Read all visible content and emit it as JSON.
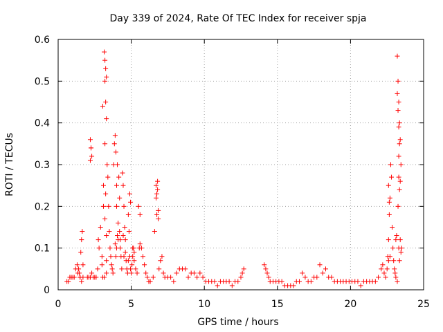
{
  "chart_data": {
    "type": "scatter",
    "title": "Day 339 of 2024, Rate Of TEC Index for receiver spja",
    "xlabel": "GPS time / hours",
    "ylabel": "ROTI / TECUs",
    "xlim": [
      0,
      25
    ],
    "ylim": [
      0,
      0.6
    ],
    "xticks": [
      "0",
      "5",
      "10",
      "15",
      "20",
      "25"
    ],
    "yticks": [
      "0",
      "0.1",
      "0.2",
      "0.3",
      "0.4",
      "0.5",
      "0.6"
    ],
    "grid": true,
    "marker": "+",
    "color": "#ff0000",
    "series": [
      {
        "x": [
          0.6,
          0.7,
          0.8,
          0.9,
          1.0,
          1.1,
          1.2,
          1.3,
          1.35,
          1.4,
          1.45,
          1.5,
          1.55,
          1.6,
          1.65,
          1.7,
          1.5,
          1.6,
          1.7,
          2.0,
          2.1,
          2.2,
          2.3,
          2.4,
          2.5,
          2.6,
          2.2,
          2.25,
          2.3,
          2.7,
          2.8,
          2.9,
          3.0,
          3.05,
          3.1,
          3.1,
          3.15,
          3.2,
          3.25,
          3.3,
          3.3,
          3.35,
          3.4,
          3.45,
          3.5,
          3.55,
          3.6,
          3.65,
          3.7,
          3.75,
          3.8,
          3.85,
          3.9,
          3.95,
          4.0,
          4.0,
          4.05,
          4.1,
          4.1,
          4.15,
          4.2,
          4.25,
          4.3,
          4.35,
          4.4,
          4.45,
          4.5,
          4.55,
          4.6,
          4.65,
          4.7,
          4.75,
          4.8,
          4.85,
          4.9,
          4.95,
          5.0,
          5.05,
          5.1,
          5.15,
          5.2,
          5.3,
          5.4,
          5.5,
          5.6,
          5.7,
          5.8,
          5.9,
          6.0,
          6.1,
          6.2,
          6.3,
          6.5,
          6.6,
          6.7,
          6.75,
          6.8,
          6.85,
          6.9,
          7.0,
          7.1,
          7.2,
          7.3,
          7.5,
          7.7,
          7.9,
          8.1,
          8.3,
          8.5,
          8.7,
          8.9,
          9.1,
          9.3,
          9.5,
          9.7,
          9.9,
          10.1,
          10.3,
          10.5,
          10.7,
          10.9,
          11.1,
          11.3,
          11.5,
          11.7,
          11.9,
          12.1,
          12.3,
          12.5,
          12.6,
          12.7,
          14.1,
          14.2,
          14.3,
          14.4,
          14.5,
          14.7,
          14.9,
          15.1,
          15.3,
          15.5,
          15.7,
          15.9,
          16.1,
          16.3,
          16.5,
          16.7,
          16.9,
          17.1,
          17.3,
          17.5,
          17.7,
          17.9,
          18.1,
          18.3,
          18.5,
          18.7,
          18.9,
          19.1,
          19.3,
          19.5,
          19.7,
          19.9,
          20.1,
          20.3,
          20.5,
          20.7,
          20.9,
          21.1,
          21.3,
          21.5,
          21.7,
          21.9,
          22.1,
          22.2,
          22.3,
          22.4,
          22.5,
          22.55,
          22.6,
          22.65,
          22.7,
          22.75,
          22.8,
          22.85,
          22.9,
          22.95,
          23.0,
          23.05,
          23.1,
          23.15,
          23.2,
          23.25,
          23.3,
          23.35,
          23.4,
          23.45,
          23.5,
          3.05,
          3.2,
          3.25,
          3.3,
          2.75,
          3.0,
          4.0,
          3.95,
          4.05,
          2.2,
          2.25,
          23.2,
          23.25,
          23.3,
          23.35,
          23.4,
          23.3,
          23.25,
          22.6,
          22.65,
          23.3,
          23.35,
          4.9,
          4.95,
          6.7,
          6.8,
          6.75,
          6.85,
          5.6,
          5.55,
          3.3,
          4.2,
          4.5,
          4.6,
          4.8,
          3.9,
          4.25,
          4.45,
          5.1,
          5.2,
          3.2,
          3.25,
          3.3,
          3.15,
          3.2,
          23.2,
          23.4,
          22.6,
          22.7,
          23.1,
          23.3,
          23.35,
          23.45
        ],
        "y": [
          0.02,
          0.02,
          0.03,
          0.03,
          0.03,
          0.03,
          0.05,
          0.06,
          0.04,
          0.05,
          0.04,
          0.03,
          0.09,
          0.12,
          0.14,
          0.06,
          0.03,
          0.02,
          0.03,
          0.03,
          0.03,
          0.03,
          0.04,
          0.03,
          0.03,
          0.03,
          0.36,
          0.34,
          0.32,
          0.05,
          0.1,
          0.15,
          0.08,
          0.44,
          0.2,
          0.25,
          0.57,
          0.55,
          0.53,
          0.51,
          0.41,
          0.3,
          0.27,
          0.2,
          0.14,
          0.1,
          0.08,
          0.06,
          0.05,
          0.04,
          0.3,
          0.35,
          0.37,
          0.33,
          0.25,
          0.2,
          0.3,
          0.16,
          0.12,
          0.27,
          0.22,
          0.1,
          0.08,
          0.05,
          0.28,
          0.25,
          0.2,
          0.15,
          0.12,
          0.07,
          0.05,
          0.04,
          0.18,
          0.14,
          0.08,
          0.05,
          0.04,
          0.06,
          0.08,
          0.1,
          0.07,
          0.05,
          0.04,
          0.2,
          0.18,
          0.1,
          0.08,
          0.06,
          0.04,
          0.03,
          0.02,
          0.02,
          0.03,
          0.14,
          0.25,
          0.23,
          0.26,
          0.19,
          0.05,
          0.07,
          0.08,
          0.04,
          0.03,
          0.03,
          0.03,
          0.02,
          0.04,
          0.05,
          0.05,
          0.05,
          0.03,
          0.04,
          0.04,
          0.03,
          0.04,
          0.03,
          0.02,
          0.02,
          0.02,
          0.02,
          0.01,
          0.02,
          0.02,
          0.02,
          0.02,
          0.01,
          0.02,
          0.02,
          0.03,
          0.04,
          0.05,
          0.06,
          0.05,
          0.04,
          0.03,
          0.02,
          0.02,
          0.02,
          0.02,
          0.02,
          0.01,
          0.01,
          0.01,
          0.01,
          0.02,
          0.02,
          0.04,
          0.03,
          0.02,
          0.02,
          0.03,
          0.03,
          0.06,
          0.04,
          0.05,
          0.03,
          0.03,
          0.02,
          0.02,
          0.02,
          0.02,
          0.02,
          0.02,
          0.02,
          0.02,
          0.02,
          0.01,
          0.02,
          0.02,
          0.02,
          0.02,
          0.02,
          0.03,
          0.05,
          0.06,
          0.04,
          0.03,
          0.05,
          0.08,
          0.12,
          0.18,
          0.22,
          0.3,
          0.27,
          0.15,
          0.1,
          0.07,
          0.05,
          0.04,
          0.03,
          0.13,
          0.56,
          0.5,
          0.45,
          0.4,
          0.36,
          0.3,
          0.1,
          0.03,
          0.17,
          0.23,
          0.13,
          0.12,
          0.06,
          0.1,
          0.08,
          0.13,
          0.31,
          0.34,
          0.47,
          0.43,
          0.39,
          0.35,
          0.26,
          0.32,
          0.2,
          0.25,
          0.21,
          0.27,
          0.24,
          0.23,
          0.21,
          0.22,
          0.24,
          0.18,
          0.17,
          0.11,
          0.1,
          0.07,
          0.14,
          0.08,
          0.09,
          0.07,
          0.11,
          0.12,
          0.13,
          0.1,
          0.09,
          0.5,
          0.45,
          0.04,
          0.03,
          0.35,
          0.02,
          0.12,
          0.07,
          0.08,
          0.12,
          0.1,
          0.07,
          0.09
        ]
      }
    ]
  }
}
